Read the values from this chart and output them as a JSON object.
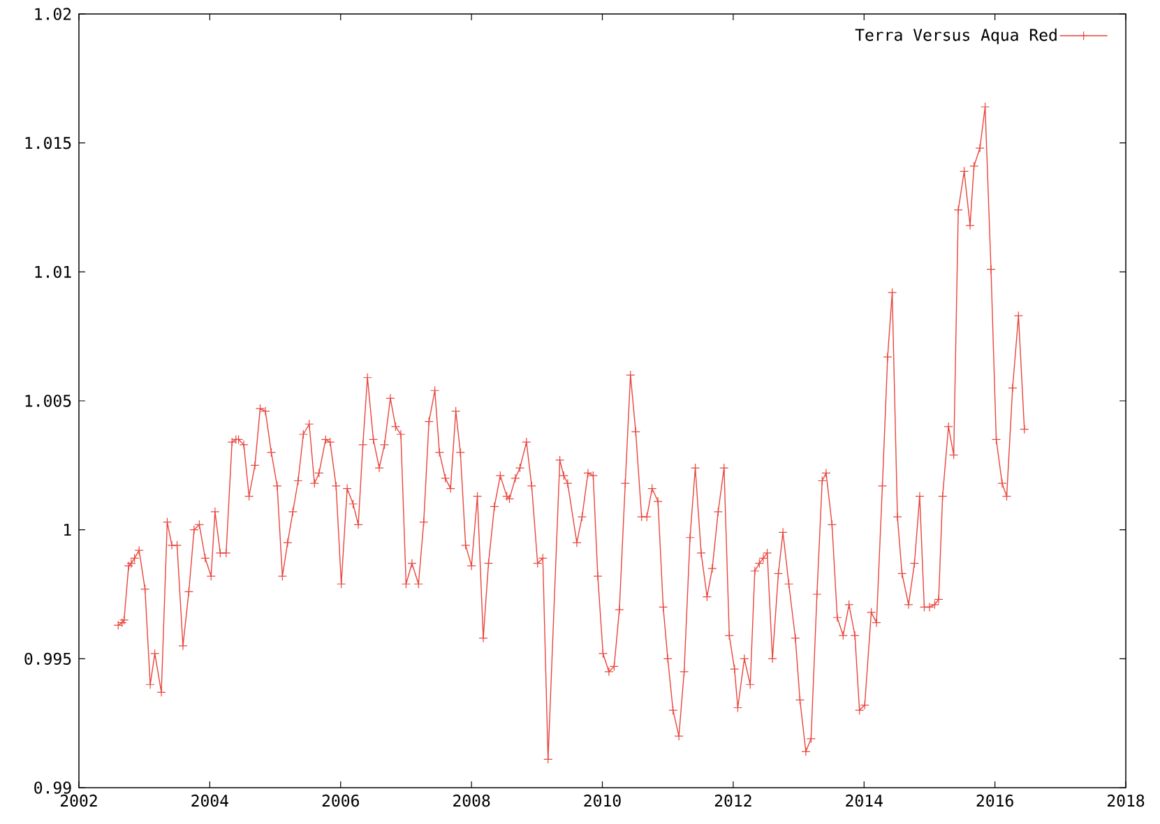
{
  "chart_data": {
    "type": "line",
    "xlim": [
      2002,
      2018
    ],
    "ylim": [
      0.99,
      1.02
    ],
    "xticks": [
      2002,
      2004,
      2006,
      2008,
      2010,
      2012,
      2014,
      2016,
      2018
    ],
    "yticks": [
      0.99,
      0.995,
      1,
      1.005,
      1.01,
      1.015,
      1.02
    ],
    "legend": "top right",
    "marker": "cross",
    "grid": false,
    "x": [
      2002.6,
      2002.66,
      2002.69,
      2002.76,
      2002.8,
      2002.85,
      2002.92,
      2003.01,
      2003.09,
      2003.16,
      2003.26,
      2003.35,
      2003.42,
      2003.5,
      2003.59,
      2003.68,
      2003.76,
      2003.84,
      2003.93,
      2004.02,
      2004.08,
      2004.16,
      2004.25,
      2004.34,
      2004.4,
      2004.44,
      2004.52,
      2004.6,
      2004.69,
      2004.77,
      2004.85,
      2004.94,
      2005.03,
      2005.11,
      2005.19,
      2005.27,
      2005.35,
      2005.43,
      2005.52,
      2005.6,
      2005.67,
      2005.77,
      2005.84,
      2005.93,
      2006.01,
      2006.1,
      2006.19,
      2006.27,
      2006.34,
      2006.41,
      2006.5,
      2006.59,
      2006.67,
      2006.76,
      2006.84,
      2006.92,
      2007.0,
      2007.09,
      2007.19,
      2007.27,
      2007.35,
      2007.44,
      2007.51,
      2007.6,
      2007.68,
      2007.76,
      2007.83,
      2007.91,
      2008.0,
      2008.09,
      2008.18,
      2008.26,
      2008.35,
      2008.44,
      2008.54,
      2008.58,
      2008.67,
      2008.74,
      2008.84,
      2008.92,
      2009.01,
      2009.09,
      2009.17,
      2009.35,
      2009.41,
      2009.47,
      2009.61,
      2009.69,
      2009.78,
      2009.86,
      2009.93,
      2010.01,
      2010.1,
      2010.18,
      2010.26,
      2010.35,
      2010.43,
      2010.51,
      2010.6,
      2010.68,
      2010.76,
      2010.85,
      2010.93,
      2011.0,
      2011.08,
      2011.17,
      2011.25,
      2011.34,
      2011.42,
      2011.51,
      2011.6,
      2011.68,
      2011.77,
      2011.86,
      2011.94,
      2012.02,
      2012.07,
      2012.17,
      2012.26,
      2012.33,
      2012.4,
      2012.46,
      2012.52,
      2012.6,
      2012.69,
      2012.76,
      2012.85,
      2012.95,
      2013.02,
      2013.11,
      2013.19,
      2013.28,
      2013.36,
      2013.42,
      2013.51,
      2013.59,
      2013.68,
      2013.77,
      2013.86,
      2013.93,
      2014.01,
      2014.11,
      2014.19,
      2014.28,
      2014.36,
      2014.43,
      2014.51,
      2014.58,
      2014.68,
      2014.77,
      2014.85,
      2014.92,
      2015.0,
      2015.08,
      2015.14,
      2015.2,
      2015.29,
      2015.37,
      2015.44,
      2015.53,
      2015.62,
      2015.68,
      2015.77,
      2015.85,
      2015.94,
      2016.02,
      2016.11,
      2016.18,
      2016.27,
      2016.36,
      2016.45
    ],
    "series": [
      {
        "name": "Terra Versus Aqua Red",
        "color": "#e8453c",
        "values": [
          0.9963,
          0.9964,
          0.9965,
          0.9986,
          0.9987,
          0.9989,
          0.9992,
          0.9977,
          0.994,
          0.9952,
          0.9937,
          1.0003,
          0.9994,
          0.9994,
          0.9955,
          0.9976,
          1.0,
          1.0002,
          0.9989,
          0.9982,
          1.0007,
          0.9991,
          0.9991,
          1.0034,
          1.0035,
          1.0035,
          1.0033,
          1.0013,
          1.0025,
          1.0047,
          1.0046,
          1.003,
          1.0017,
          0.9982,
          0.9995,
          1.0007,
          1.0019,
          1.0037,
          1.0041,
          1.0018,
          1.0022,
          1.0035,
          1.0034,
          1.0017,
          0.9979,
          1.0016,
          1.001,
          1.0002,
          1.0033,
          1.0059,
          1.0035,
          1.0024,
          1.0033,
          1.0051,
          1.004,
          1.0037,
          0.9979,
          0.9987,
          0.9979,
          1.0003,
          1.0042,
          1.0054,
          1.003,
          1.002,
          1.0016,
          1.0046,
          1.003,
          0.9994,
          0.9986,
          1.0013,
          0.9958,
          0.9987,
          1.0009,
          1.0021,
          1.0013,
          1.0012,
          1.002,
          1.0024,
          1.0034,
          1.0017,
          0.9987,
          0.9989,
          0.9911,
          1.0027,
          1.0021,
          1.0018,
          0.9995,
          1.0005,
          1.0022,
          1.0021,
          0.9982,
          0.9952,
          0.9945,
          0.9947,
          0.9969,
          1.0018,
          1.006,
          1.0038,
          1.0005,
          1.0005,
          1.0016,
          1.0011,
          0.997,
          0.995,
          0.993,
          0.992,
          0.9945,
          0.9997,
          1.0024,
          0.9991,
          0.9974,
          0.9985,
          1.0007,
          1.0024,
          0.9959,
          0.9946,
          0.9931,
          0.995,
          0.994,
          0.9984,
          0.9987,
          0.9989,
          0.9991,
          0.995,
          0.9983,
          0.9999,
          0.9979,
          0.9958,
          0.9934,
          0.9914,
          0.9919,
          0.9975,
          1.0019,
          1.0022,
          1.0002,
          0.9966,
          0.9959,
          0.9971,
          0.9959,
          0.993,
          0.9932,
          0.9968,
          0.9964,
          1.0017,
          1.0067,
          1.0092,
          1.0005,
          0.9983,
          0.9971,
          0.9987,
          1.0013,
          0.997,
          0.997,
          0.9971,
          0.9973,
          1.0013,
          1.004,
          1.0029,
          1.0124,
          1.0139,
          1.0118,
          1.0141,
          1.0148,
          1.0164,
          1.0101,
          1.0035,
          1.0018,
          1.0013,
          1.0055,
          1.0083,
          1.0039
        ]
      }
    ]
  }
}
